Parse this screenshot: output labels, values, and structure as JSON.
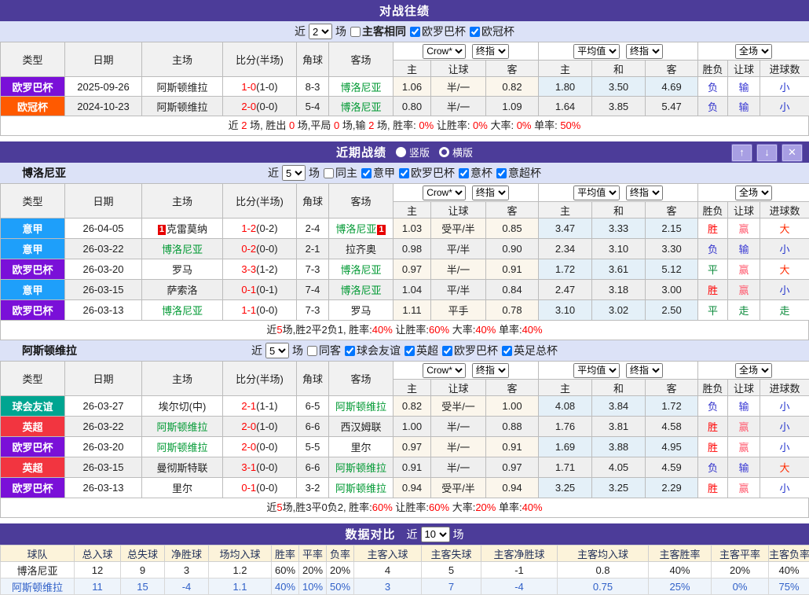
{
  "colors": {
    "purple_bar": "#4c3c99",
    "filter_bg": "#dce2f7",
    "team_green": "#009933",
    "score_red": "#ff0000",
    "result": {
      "胜": "#ff0000",
      "负": "#3333cc",
      "平": "#0a8a3a",
      "赢": "#ff5e72",
      "输": "#3838d4",
      "走": "#0a8a3a",
      "大": "#ff2a00",
      "小": "#2233cc"
    }
  },
  "table_labels": {
    "type": "类型",
    "date": "日期",
    "home": "主场",
    "score": "比分(半场)",
    "corner": "角球",
    "away": "客场",
    "crow": "Crow*",
    "final1": "终指",
    "avg": "平均值",
    "final2": "终指",
    "full": "全场",
    "odds_home": "主",
    "odds_handicap": "让球",
    "odds_away": "客",
    "avg_home": "主",
    "avg_draw": "和",
    "avg_away": "客",
    "res_wdl": "胜负",
    "res_handicap": "让球",
    "res_goals": "进球数"
  },
  "h2h": {
    "title": "对战往绩",
    "filter": {
      "recent_label": "近",
      "recent_value": "2",
      "games_label": "场",
      "same_label": "主客相同",
      "same_checked": false,
      "leagues": [
        {
          "label": "欧罗巴杯",
          "checked": true
        },
        {
          "label": "欧冠杯",
          "checked": true
        }
      ]
    },
    "rows": [
      {
        "league": "欧罗巴杯",
        "lc": "#7a10d8",
        "date": "2025-09-26",
        "home": "阿斯顿维拉",
        "hb": "",
        "hg": false,
        "score": "1-0",
        "half": "(1-0)",
        "corner": "8-3",
        "away": "博洛尼亚",
        "ab": "",
        "ag": true,
        "ch": "1.06",
        "cl": "半/一",
        "ca": "0.82",
        "ah": "1.80",
        "ad": "3.50",
        "aa": "4.69",
        "r1": "负",
        "r2": "输",
        "r3": "小"
      },
      {
        "league": "欧冠杯",
        "lc": "#ff5a00",
        "date": "2024-10-23",
        "home": "阿斯顿维拉",
        "hb": "",
        "hg": false,
        "score": "2-0",
        "half": "(0-0)",
        "corner": "5-4",
        "away": "博洛尼亚",
        "ab": "",
        "ag": true,
        "ch": "0.80",
        "cl": "半/一",
        "ca": "1.09",
        "ah": "1.64",
        "ad": "3.85",
        "aa": "5.47",
        "r1": "负",
        "r2": "输",
        "r3": "小"
      }
    ],
    "summary": [
      {
        "t": "近 "
      },
      {
        "t": "2",
        "r": true
      },
      {
        "t": " 场, 胜出 "
      },
      {
        "t": "0",
        "r": true
      },
      {
        "t": " 场,平局 "
      },
      {
        "t": "0",
        "r": true
      },
      {
        "t": " 场,输 "
      },
      {
        "t": "2",
        "r": true
      },
      {
        "t": " 场, 胜率: "
      },
      {
        "t": "0%",
        "r": true
      },
      {
        "t": " 让胜率: "
      },
      {
        "t": "0%",
        "r": true
      },
      {
        "t": " 大率: "
      },
      {
        "t": "0%",
        "r": true
      },
      {
        "t": " 单率: "
      },
      {
        "t": "50%",
        "r": true
      }
    ]
  },
  "recent": {
    "title": "近期战绩",
    "radio_vertical": "竖版",
    "radio_horizontal": "横版",
    "sections": [
      {
        "team": "博洛尼亚",
        "filter": {
          "recent_label": "近",
          "recent_value": "5",
          "games_label": "场",
          "same_label": "同主",
          "same_checked": false,
          "leagues": [
            {
              "label": "意甲",
              "checked": true
            },
            {
              "label": "欧罗巴杯",
              "checked": true
            },
            {
              "label": "意杯",
              "checked": true
            },
            {
              "label": "意超杯",
              "checked": true
            }
          ]
        },
        "rows": [
          {
            "league": "意甲",
            "lc": "#1e9ffa",
            "date": "26-04-05",
            "home": "克雷莫纳",
            "hb": "1",
            "hg": false,
            "score": "1-2",
            "half": "(0-2)",
            "corner": "2-4",
            "away": "博洛尼亚",
            "ab": "1",
            "ag": true,
            "ch": "1.03",
            "cl": "受平/半",
            "ca": "0.85",
            "ah": "3.47",
            "ad": "3.33",
            "aa": "2.15",
            "r1": "胜",
            "r2": "赢",
            "r3": "大"
          },
          {
            "league": "意甲",
            "lc": "#1e9ffa",
            "date": "26-03-22",
            "home": "博洛尼亚",
            "hb": "",
            "hg": true,
            "score": "0-2",
            "half": "(0-0)",
            "corner": "2-1",
            "away": "拉齐奥",
            "ab": "",
            "ag": false,
            "ch": "0.98",
            "cl": "平/半",
            "ca": "0.90",
            "ah": "2.34",
            "ad": "3.10",
            "aa": "3.30",
            "r1": "负",
            "r2": "输",
            "r3": "小"
          },
          {
            "league": "欧罗巴杯",
            "lc": "#7a10d8",
            "date": "26-03-20",
            "home": "罗马",
            "hb": "",
            "hg": false,
            "score": "3-3",
            "half": "(1-2)",
            "corner": "7-3",
            "away": "博洛尼亚",
            "ab": "",
            "ag": true,
            "ch": "0.97",
            "cl": "半/一",
            "ca": "0.91",
            "ah": "1.72",
            "ad": "3.61",
            "aa": "5.12",
            "r1": "平",
            "r2": "赢",
            "r3": "大"
          },
          {
            "league": "意甲",
            "lc": "#1e9ffa",
            "date": "26-03-15",
            "home": "萨索洛",
            "hb": "",
            "hg": false,
            "score": "0-1",
            "half": "(0-1)",
            "corner": "7-4",
            "away": "博洛尼亚",
            "ab": "",
            "ag": true,
            "ch": "1.04",
            "cl": "平/半",
            "ca": "0.84",
            "ah": "2.47",
            "ad": "3.18",
            "aa": "3.00",
            "r1": "胜",
            "r2": "赢",
            "r3": "小"
          },
          {
            "league": "欧罗巴杯",
            "lc": "#7a10d8",
            "date": "26-03-13",
            "home": "博洛尼亚",
            "hb": "",
            "hg": true,
            "score": "1-1",
            "half": "(0-0)",
            "corner": "7-3",
            "away": "罗马",
            "ab": "",
            "ag": false,
            "ch": "1.11",
            "cl": "平手",
            "ca": "0.78",
            "ah": "3.10",
            "ad": "3.02",
            "aa": "2.50",
            "r1": "平",
            "r2": "走",
            "r3": "走"
          }
        ],
        "summary": [
          {
            "t": "近"
          },
          {
            "t": "5",
            "r": true
          },
          {
            "t": "场,胜2平2负1, 胜率:"
          },
          {
            "t": "40%",
            "r": true
          },
          {
            "t": " 让胜率:"
          },
          {
            "t": "60%",
            "r": true
          },
          {
            "t": " 大率:"
          },
          {
            "t": "40%",
            "r": true
          },
          {
            "t": " 单率:"
          },
          {
            "t": "40%",
            "r": true
          }
        ]
      },
      {
        "team": "阿斯顿维拉",
        "filter": {
          "recent_label": "近",
          "recent_value": "5",
          "games_label": "场",
          "same_label": "同客",
          "same_checked": false,
          "leagues": [
            {
              "label": "球会友谊",
              "checked": true
            },
            {
              "label": "英超",
              "checked": true
            },
            {
              "label": "欧罗巴杯",
              "checked": true
            },
            {
              "label": "英足总杯",
              "checked": true
            }
          ]
        },
        "rows": [
          {
            "league": "球会友谊",
            "lc": "#00a591",
            "date": "26-03-27",
            "home": "埃尔切(中)",
            "hb": "",
            "hg": false,
            "score": "2-1",
            "half": "(1-1)",
            "corner": "6-5",
            "away": "阿斯顿维拉",
            "ab": "",
            "ag": true,
            "ch": "0.82",
            "cl": "受半/一",
            "ca": "1.00",
            "ah": "4.08",
            "ad": "3.84",
            "aa": "1.72",
            "r1": "负",
            "r2": "输",
            "r3": "小"
          },
          {
            "league": "英超",
            "lc": "#f23540",
            "date": "26-03-22",
            "home": "阿斯顿维拉",
            "hb": "",
            "hg": true,
            "score": "2-0",
            "half": "(1-0)",
            "corner": "6-6",
            "away": "西汉姆联",
            "ab": "",
            "ag": false,
            "ch": "1.00",
            "cl": "半/一",
            "ca": "0.88",
            "ah": "1.76",
            "ad": "3.81",
            "aa": "4.58",
            "r1": "胜",
            "r2": "赢",
            "r3": "小"
          },
          {
            "league": "欧罗巴杯",
            "lc": "#7a10d8",
            "date": "26-03-20",
            "home": "阿斯顿维拉",
            "hb": "",
            "hg": true,
            "score": "2-0",
            "half": "(0-0)",
            "corner": "5-5",
            "away": "里尔",
            "ab": "",
            "ag": false,
            "ch": "0.97",
            "cl": "半/一",
            "ca": "0.91",
            "ah": "1.69",
            "ad": "3.88",
            "aa": "4.95",
            "r1": "胜",
            "r2": "赢",
            "r3": "小"
          },
          {
            "league": "英超",
            "lc": "#f23540",
            "date": "26-03-15",
            "home": "曼彻斯特联",
            "hb": "",
            "hg": false,
            "score": "3-1",
            "half": "(0-0)",
            "corner": "6-6",
            "away": "阿斯顿维拉",
            "ab": "",
            "ag": true,
            "ch": "0.91",
            "cl": "半/一",
            "ca": "0.97",
            "ah": "1.71",
            "ad": "4.05",
            "aa": "4.59",
            "r1": "负",
            "r2": "输",
            "r3": "大"
          },
          {
            "league": "欧罗巴杯",
            "lc": "#7a10d8",
            "date": "26-03-13",
            "home": "里尔",
            "hb": "",
            "hg": false,
            "score": "0-1",
            "half": "(0-0)",
            "corner": "3-2",
            "away": "阿斯顿维拉",
            "ab": "",
            "ag": true,
            "ch": "0.94",
            "cl": "受平/半",
            "ca": "0.94",
            "ah": "3.25",
            "ad": "3.25",
            "aa": "2.29",
            "r1": "胜",
            "r2": "赢",
            "r3": "小"
          }
        ],
        "summary": [
          {
            "t": "近"
          },
          {
            "t": "5",
            "r": true
          },
          {
            "t": "场,胜3平0负2, 胜率:"
          },
          {
            "t": "60%",
            "r": true
          },
          {
            "t": " 让胜率:"
          },
          {
            "t": "60%",
            "r": true
          },
          {
            "t": " 大率:"
          },
          {
            "t": "20%",
            "r": true
          },
          {
            "t": " 单率:"
          },
          {
            "t": "40%",
            "r": true
          }
        ]
      }
    ]
  },
  "compare": {
    "title": "数据对比",
    "recent_label": "近",
    "recent_value": "10",
    "games_label": "场",
    "headers": [
      "球队",
      "总入球",
      "总失球",
      "净胜球",
      "场均入球",
      "胜率",
      "平率",
      "负率",
      "主客入球",
      "主客失球",
      "主客净胜球",
      "主客均入球",
      "主客胜率",
      "主客平率",
      "主客负率"
    ],
    "rows": [
      {
        "blue": false,
        "cells": [
          "博洛尼亚",
          "12",
          "9",
          "3",
          "1.2",
          "60%",
          "20%",
          "20%",
          "4",
          "5",
          "-1",
          "0.8",
          "40%",
          "20%",
          "40%"
        ]
      },
      {
        "blue": true,
        "cells": [
          "阿斯顿维拉",
          "11",
          "15",
          "-4",
          "1.1",
          "40%",
          "10%",
          "50%",
          "3",
          "7",
          "-4",
          "0.75",
          "25%",
          "0%",
          "75%"
        ]
      }
    ]
  }
}
